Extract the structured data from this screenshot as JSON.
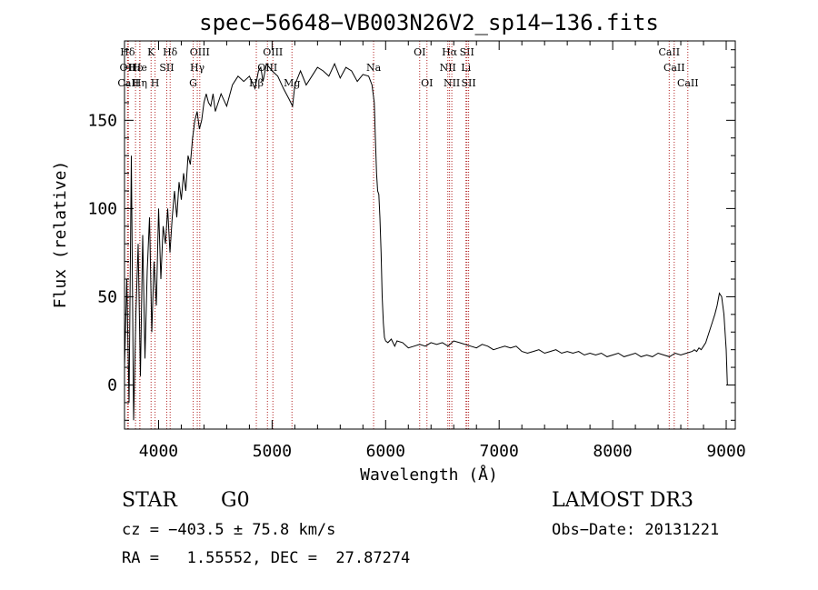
{
  "chart_data": {
    "type": "line",
    "title": "spec−56648−VB003N26V2_sp14−136.fits",
    "xlabel": "Wavelength (Å)",
    "ylabel": "Flux (relative)",
    "xlim": [
      3700,
      9080
    ],
    "ylim": [
      -25,
      195
    ],
    "x_ticks": [
      4000,
      5000,
      6000,
      7000,
      8000,
      9000
    ],
    "y_ticks": [
      0,
      50,
      100,
      150
    ],
    "grid": false,
    "series": [
      {
        "color": "#000000",
        "x": [
          3700,
          3720,
          3740,
          3760,
          3780,
          3800,
          3820,
          3840,
          3860,
          3880,
          3900,
          3920,
          3940,
          3960,
          3980,
          4000,
          4020,
          4040,
          4060,
          4080,
          4100,
          4120,
          4140,
          4160,
          4180,
          4200,
          4220,
          4240,
          4260,
          4280,
          4300,
          4320,
          4340,
          4360,
          4380,
          4400,
          4420,
          4440,
          4460,
          4480,
          4500,
          4550,
          4600,
          4650,
          4700,
          4750,
          4800,
          4850,
          4880,
          4900,
          4920,
          4950,
          5000,
          5050,
          5100,
          5150,
          5180,
          5200,
          5250,
          5300,
          5350,
          5400,
          5450,
          5500,
          5550,
          5600,
          5650,
          5700,
          5750,
          5800,
          5850,
          5880,
          5900,
          5910,
          5920,
          5930,
          5940,
          5950,
          5960,
          5970,
          5980,
          5990,
          6000,
          6020,
          6050,
          6080,
          6100,
          6150,
          6200,
          6250,
          6300,
          6350,
          6400,
          6450,
          6500,
          6550,
          6600,
          6650,
          6700,
          6750,
          6800,
          6850,
          6900,
          6950,
          7000,
          7050,
          7100,
          7150,
          7200,
          7250,
          7300,
          7350,
          7400,
          7450,
          7500,
          7550,
          7600,
          7650,
          7700,
          7750,
          7800,
          7850,
          7900,
          7950,
          8000,
          8050,
          8100,
          8150,
          8200,
          8250,
          8300,
          8350,
          8400,
          8450,
          8500,
          8550,
          8600,
          8650,
          8700,
          8720,
          8740,
          8760,
          8780,
          8800,
          8820,
          8840,
          8860,
          8880,
          8900,
          8920,
          8940,
          8960,
          8980,
          9000,
          9010
        ],
        "y": [
          10,
          60,
          -10,
          130,
          -20,
          40,
          80,
          5,
          85,
          15,
          65,
          95,
          30,
          70,
          45,
          100,
          60,
          90,
          80,
          100,
          75,
          95,
          110,
          95,
          115,
          105,
          120,
          110,
          130,
          125,
          140,
          150,
          155,
          145,
          150,
          160,
          165,
          160,
          158,
          165,
          155,
          165,
          158,
          170,
          175,
          172,
          175,
          168,
          178,
          180,
          172,
          182,
          178,
          175,
          168,
          162,
          158,
          170,
          178,
          170,
          175,
          180,
          178,
          175,
          182,
          174,
          180,
          178,
          172,
          176,
          175,
          170,
          160,
          140,
          120,
          110,
          108,
          95,
          75,
          50,
          35,
          27,
          25,
          24,
          26,
          22,
          25,
          24,
          21,
          22,
          23,
          22,
          24,
          23,
          24,
          22,
          25,
          24,
          23,
          22,
          21,
          23,
          22,
          20,
          21,
          22,
          21,
          22,
          19,
          18,
          19,
          20,
          18,
          19,
          20,
          18,
          19,
          18,
          19,
          17,
          18,
          17,
          18,
          16,
          17,
          18,
          16,
          17,
          18,
          16,
          17,
          16,
          18,
          17,
          16,
          18,
          17,
          18,
          19,
          20,
          19,
          21,
          20,
          22,
          24,
          28,
          32,
          36,
          40,
          45,
          52,
          50,
          40,
          20,
          0
        ]
      }
    ],
    "lines": [
      {
        "name": "Hδ",
        "x": 3727,
        "row": 0
      },
      {
        "name": "OII",
        "x": 3727,
        "row": 1
      },
      {
        "name": "CaII",
        "x": 3734,
        "row": 2
      },
      {
        "name": "Hε",
        "x": 3797,
        "row": 1
      },
      {
        "name": "He",
        "x": 3835,
        "row": 1
      },
      {
        "name": "Hη",
        "x": 3835,
        "row": 2
      },
      {
        "name": "K",
        "x": 3934,
        "row": 0
      },
      {
        "name": "H",
        "x": 3969,
        "row": 2
      },
      {
        "name": "SII",
        "x": 4072,
        "row": 1
      },
      {
        "name": "Hδ",
        "x": 4102,
        "row": 0
      },
      {
        "name": "OIII",
        "x": 4363,
        "row": 0
      },
      {
        "name": "Hγ",
        "x": 4341,
        "row": 1
      },
      {
        "name": "G",
        "x": 4305,
        "row": 2
      },
      {
        "name": "Hβ",
        "x": 4861,
        "row": 2
      },
      {
        "name": "OIII",
        "x": 4959,
        "row": 1
      },
      {
        "name": "OIII",
        "x": 5007,
        "row": 0
      },
      {
        "name": "Mg",
        "x": 5175,
        "row": 2
      },
      {
        "name": "Na",
        "x": 5894,
        "row": 1
      },
      {
        "name": "OI",
        "x": 6300,
        "row": 0
      },
      {
        "name": "OI",
        "x": 6364,
        "row": 2
      },
      {
        "name": "Hα",
        "x": 6563,
        "row": 0
      },
      {
        "name": "NII",
        "x": 6548,
        "row": 1
      },
      {
        "name": "NII",
        "x": 6583,
        "row": 2
      },
      {
        "name": "SII",
        "x": 6716,
        "row": 0
      },
      {
        "name": "Li",
        "x": 6708,
        "row": 1
      },
      {
        "name": "SII",
        "x": 6731,
        "row": 2
      },
      {
        "name": "CaII",
        "x": 8498,
        "row": 0
      },
      {
        "name": "CaII",
        "x": 8542,
        "row": 1
      },
      {
        "name": "CaII",
        "x": 8662,
        "row": 2
      }
    ]
  },
  "info": {
    "class": "STAR",
    "subclass": "G0",
    "survey": "LAMOST DR3",
    "cz": "cz = −403.5 ± 75.8 km/s",
    "obs_date": "Obs−Date: 20131221",
    "radec": "RA =   1.55552, DEC =  27.87274"
  }
}
